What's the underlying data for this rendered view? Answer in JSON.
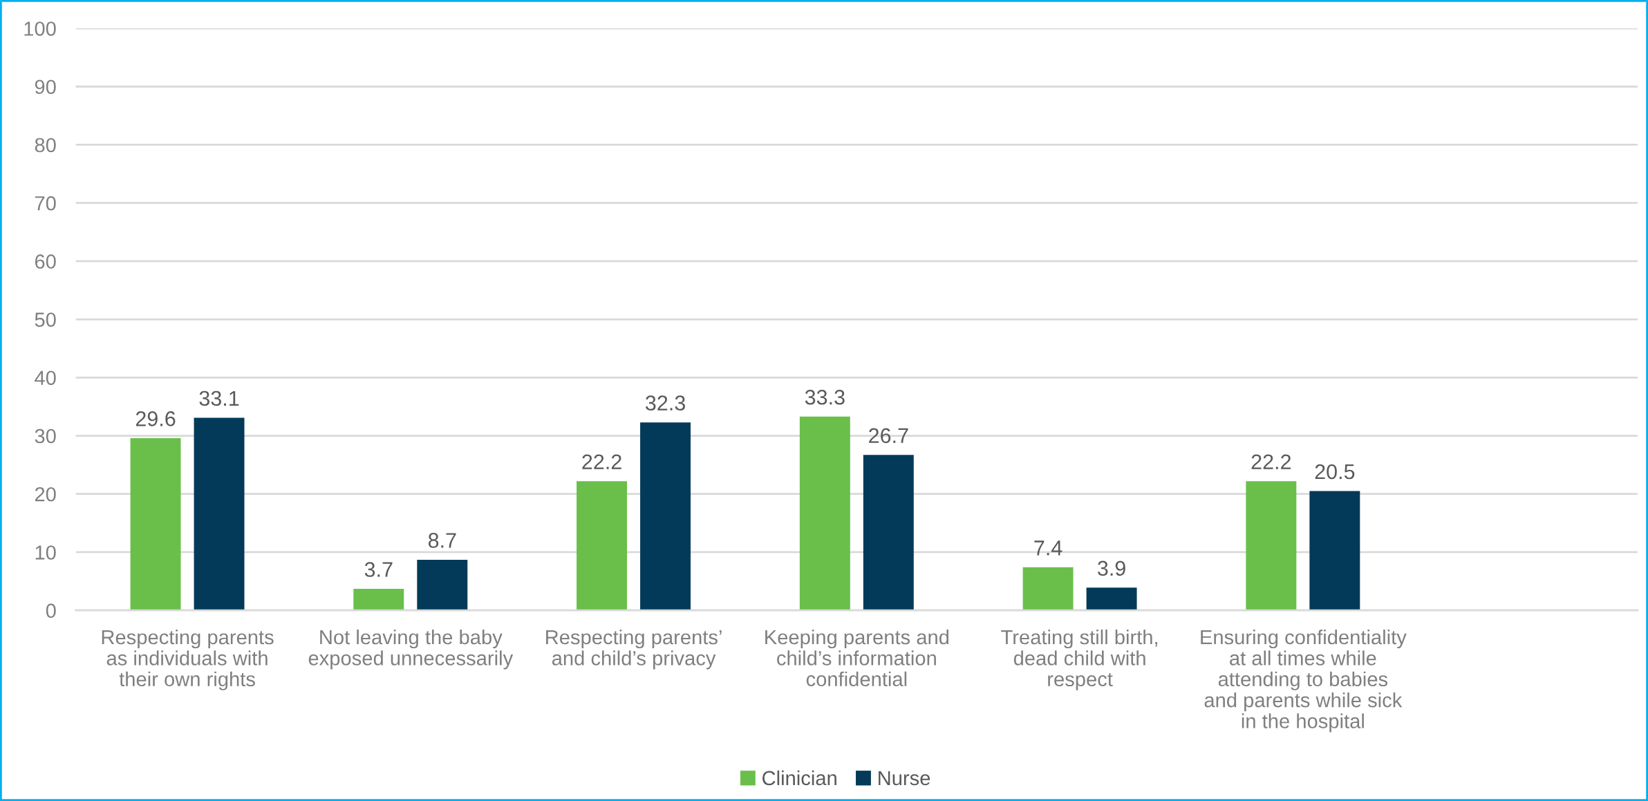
{
  "chart_data": {
    "type": "bar",
    "categories": [
      "Respecting parents\nas individuals with\ntheir own rights",
      "Not leaving the baby\nexposed unnecessarily",
      "Respecting parents’\nand child’s privacy",
      "Keeping parents and\nchild’s information\nconfidential",
      "Treating still birth,\ndead child with\nrespect",
      "Ensuring confidentiality\nat all times while\nattending to babies\nand parents while sick\nin the hospital",
      null
    ],
    "series": [
      {
        "name": "Clinician",
        "color": "#6abf4b",
        "values": [
          29.6,
          3.7,
          22.2,
          33.3,
          7.4,
          22.2,
          null
        ]
      },
      {
        "name": "Nurse",
        "color": "#033a59",
        "values": [
          33.1,
          8.7,
          32.3,
          26.7,
          3.9,
          20.5,
          null
        ]
      }
    ],
    "ylim": [
      0,
      100
    ],
    "yticks": [
      0,
      10,
      20,
      30,
      40,
      50,
      60,
      70,
      80,
      90,
      100
    ],
    "grid": "y",
    "legend": "bottom",
    "data_labels": true
  }
}
